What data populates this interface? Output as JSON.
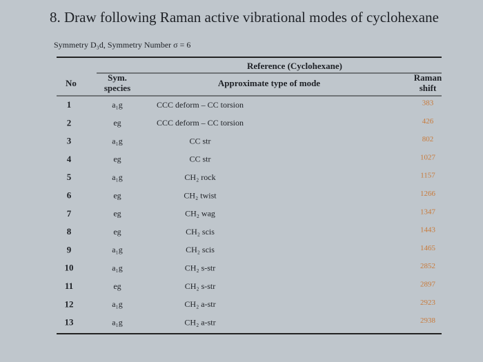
{
  "header": {
    "title": "8. Draw following Raman active vibrational modes of cyclohexane",
    "subtitle": "Symmetry D₃d, Symmetry Number σ = 6"
  },
  "table": {
    "group_header": "Reference (Cyclohexane)",
    "columns": [
      "No",
      "Sym. species",
      "Approximate type of mode",
      "Raman shift"
    ],
    "rows": [
      [
        1,
        "a₁g",
        "CCC deform – CC torsion",
        383
      ],
      [
        2,
        "eg",
        "CCC deform – CC torsion",
        426
      ],
      [
        3,
        "a₁g",
        "CC str",
        802
      ],
      [
        4,
        "eg",
        "CC str",
        1027
      ],
      [
        5,
        "a₁g",
        "CH₂ rock",
        1157
      ],
      [
        6,
        "eg",
        "CH₂ twist",
        1266
      ],
      [
        7,
        "eg",
        "CH₂ wag",
        1347
      ],
      [
        8,
        "eg",
        "CH₂ scis",
        1443
      ],
      [
        9,
        "a₁g",
        "CH₂ scis",
        1465
      ],
      [
        10,
        "a₁g",
        "CH₂ s-str",
        2852
      ],
      [
        11,
        "eg",
        "CH₂ s-str",
        2897
      ],
      [
        12,
        "a₁g",
        "CH₂ a-str",
        2923
      ],
      [
        13,
        "a₁g",
        "CH₂ a-str",
        2938
      ]
    ]
  }
}
